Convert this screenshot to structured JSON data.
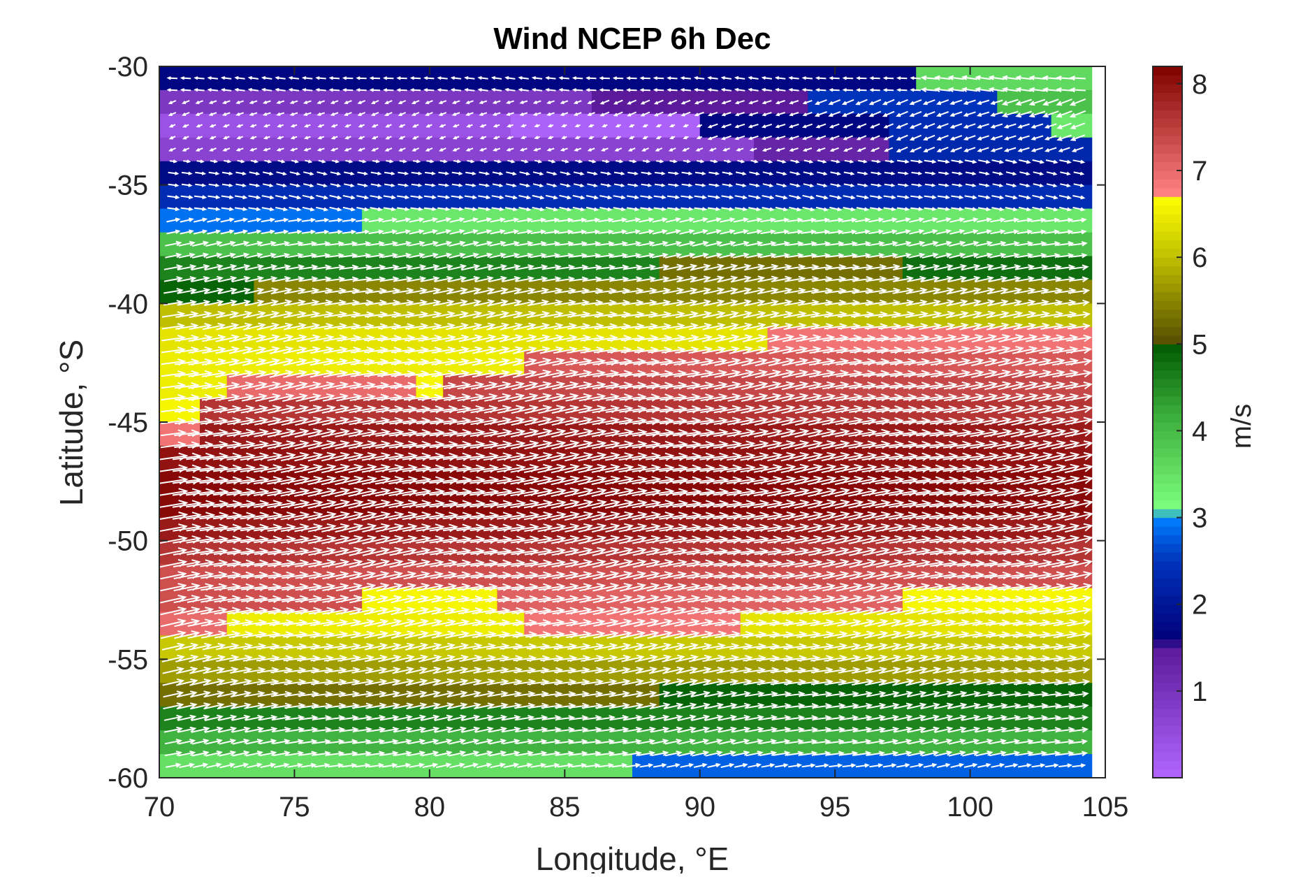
{
  "chart_data": {
    "type": "heatmap",
    "title": "Wind NCEP 6h Dec",
    "xlabel": "Longitude, °E",
    "ylabel": "Latitude, °S",
    "xlim": [
      70,
      105
    ],
    "ylim": [
      -60,
      -30
    ],
    "x_ticks": [
      "70",
      "75",
      "80",
      "85",
      "90",
      "95",
      "100",
      "105"
    ],
    "y_ticks": [
      "-30",
      "-35",
      "-40",
      "-45",
      "-50",
      "-55",
      "-60"
    ],
    "colorbar": {
      "label": "m/s",
      "range": [
        0,
        8.2
      ],
      "ticks": [
        "1",
        "2",
        "3",
        "4",
        "5",
        "6",
        "7",
        "8"
      ],
      "stops": [
        {
          "value": 0,
          "color": "#b266ff"
        },
        {
          "value": 1.5,
          "color": "#5a1a9a"
        },
        {
          "value": 1.6,
          "color": "#00007a"
        },
        {
          "value": 2.5,
          "color": "#0033bb"
        },
        {
          "value": 3.0,
          "color": "#0080ff"
        },
        {
          "value": 3.1,
          "color": "#7dff7d"
        },
        {
          "value": 4.2,
          "color": "#3aab3a"
        },
        {
          "value": 5.0,
          "color": "#005a00"
        },
        {
          "value": 5.05,
          "color": "#5a5200"
        },
        {
          "value": 6.0,
          "color": "#bfbf00"
        },
        {
          "value": 6.7,
          "color": "#ffff00"
        },
        {
          "value": 6.75,
          "color": "#ff8080"
        },
        {
          "value": 8.2,
          "color": "#800000"
        }
      ]
    },
    "grid_resolution_deg": 1.0,
    "rows": [
      {
        "lat": -30.5,
        "segments": [
          {
            "from": 70,
            "to": 98,
            "speed": 1.7
          },
          {
            "from": 98,
            "to": 104.5,
            "speed": 3.6
          }
        ]
      },
      {
        "lat": -31.5,
        "segments": [
          {
            "from": 70,
            "to": 86,
            "speed": 0.9
          },
          {
            "from": 86,
            "to": 94,
            "speed": 1.5
          },
          {
            "from": 94,
            "to": 101,
            "speed": 2.5
          },
          {
            "from": 101,
            "to": 104.5,
            "speed": 3.9
          }
        ]
      },
      {
        "lat": -32.5,
        "segments": [
          {
            "from": 70,
            "to": 83,
            "speed": 0.4
          },
          {
            "from": 83,
            "to": 90,
            "speed": 0.1
          },
          {
            "from": 90,
            "to": 97,
            "speed": 1.7
          },
          {
            "from": 97,
            "to": 103,
            "speed": 2.4
          },
          {
            "from": 103,
            "to": 104.5,
            "speed": 3.4
          }
        ]
      },
      {
        "lat": -33.5,
        "segments": [
          {
            "from": 70,
            "to": 92,
            "speed": 0.7
          },
          {
            "from": 92,
            "to": 97,
            "speed": 1.3
          },
          {
            "from": 97,
            "to": 104.5,
            "speed": 2.3
          }
        ]
      },
      {
        "lat": -34.5,
        "segments": [
          {
            "from": 70,
            "to": 104.5,
            "speed": 1.8
          }
        ]
      },
      {
        "lat": -35.5,
        "segments": [
          {
            "from": 70,
            "to": 104.5,
            "speed": 2.4
          }
        ]
      },
      {
        "lat": -36.5,
        "segments": [
          {
            "from": 70,
            "to": 77.5,
            "speed": 2.9
          },
          {
            "from": 77.5,
            "to": 104.5,
            "speed": 3.4
          }
        ]
      },
      {
        "lat": -37.5,
        "segments": [
          {
            "from": 70,
            "to": 104.5,
            "speed": 3.9
          }
        ]
      },
      {
        "lat": -38.5,
        "segments": [
          {
            "from": 70,
            "to": 88.5,
            "speed": 4.6
          },
          {
            "from": 88.5,
            "to": 97.5,
            "speed": 5.3
          },
          {
            "from": 97.5,
            "to": 104.5,
            "speed": 4.8
          }
        ]
      },
      {
        "lat": -39.5,
        "segments": [
          {
            "from": 70,
            "to": 73.5,
            "speed": 4.9
          },
          {
            "from": 73.5,
            "to": 104.5,
            "speed": 5.5
          }
        ]
      },
      {
        "lat": -40.5,
        "segments": [
          {
            "from": 70,
            "to": 104.5,
            "speed": 6.0
          }
        ]
      },
      {
        "lat": -41.5,
        "segments": [
          {
            "from": 70,
            "to": 92.5,
            "speed": 6.4
          },
          {
            "from": 92.5,
            "to": 104.5,
            "speed": 6.9
          }
        ]
      },
      {
        "lat": -42.5,
        "segments": [
          {
            "from": 70,
            "to": 83.5,
            "speed": 6.5
          },
          {
            "from": 83.5,
            "to": 104.5,
            "speed": 7.2
          }
        ]
      },
      {
        "lat": -43.5,
        "segments": [
          {
            "from": 70,
            "to": 72.5,
            "speed": 6.5
          },
          {
            "from": 72.5,
            "to": 79.5,
            "speed": 7.0
          },
          {
            "from": 79.5,
            "to": 80.5,
            "speed": 6.6
          },
          {
            "from": 80.5,
            "to": 104.5,
            "speed": 7.4
          }
        ]
      },
      {
        "lat": -44.5,
        "segments": [
          {
            "from": 70,
            "to": 71.5,
            "speed": 6.6
          },
          {
            "from": 71.5,
            "to": 104.5,
            "speed": 7.6
          }
        ]
      },
      {
        "lat": -45.5,
        "segments": [
          {
            "from": 70,
            "to": 71.5,
            "speed": 6.9
          },
          {
            "from": 71.5,
            "to": 104.5,
            "speed": 7.9
          }
        ]
      },
      {
        "lat": -46.5,
        "segments": [
          {
            "from": 70,
            "to": 104.5,
            "speed": 8.0
          }
        ]
      },
      {
        "lat": -47.5,
        "segments": [
          {
            "from": 70,
            "to": 104.5,
            "speed": 8.1
          }
        ]
      },
      {
        "lat": -48.5,
        "segments": [
          {
            "from": 70,
            "to": 104.5,
            "speed": 8.1
          }
        ]
      },
      {
        "lat": -49.5,
        "segments": [
          {
            "from": 70,
            "to": 104.5,
            "speed": 7.9
          }
        ]
      },
      {
        "lat": -50.5,
        "segments": [
          {
            "from": 70,
            "to": 104.5,
            "speed": 7.6
          }
        ]
      },
      {
        "lat": -51.5,
        "segments": [
          {
            "from": 70,
            "to": 104.5,
            "speed": 7.3
          }
        ]
      },
      {
        "lat": -52.5,
        "segments": [
          {
            "from": 70,
            "to": 77.5,
            "speed": 7.3
          },
          {
            "from": 77.5,
            "to": 82.5,
            "speed": 6.6
          },
          {
            "from": 82.5,
            "to": 97.5,
            "speed": 7.1
          },
          {
            "from": 97.5,
            "to": 104.5,
            "speed": 6.6
          }
        ]
      },
      {
        "lat": -53.5,
        "segments": [
          {
            "from": 70,
            "to": 72.5,
            "speed": 7.0
          },
          {
            "from": 72.5,
            "to": 83.5,
            "speed": 6.5
          },
          {
            "from": 83.5,
            "to": 91.5,
            "speed": 6.9
          },
          {
            "from": 91.5,
            "to": 104.5,
            "speed": 6.4
          }
        ]
      },
      {
        "lat": -54.5,
        "segments": [
          {
            "from": 70,
            "to": 104.5,
            "speed": 6.1
          }
        ]
      },
      {
        "lat": -55.5,
        "segments": [
          {
            "from": 70,
            "to": 104.5,
            "speed": 5.7
          }
        ]
      },
      {
        "lat": -56.5,
        "segments": [
          {
            "from": 70,
            "to": 88.5,
            "speed": 5.3
          },
          {
            "from": 88.5,
            "to": 104.5,
            "speed": 4.9
          }
        ]
      },
      {
        "lat": -57.5,
        "segments": [
          {
            "from": 70,
            "to": 104.5,
            "speed": 4.6
          }
        ]
      },
      {
        "lat": -58.5,
        "segments": [
          {
            "from": 70,
            "to": 104.5,
            "speed": 4.1
          }
        ]
      },
      {
        "lat": -59.5,
        "segments": [
          {
            "from": 70,
            "to": 87.5,
            "speed": 3.5
          },
          {
            "from": 87.5,
            "to": 104.5,
            "speed": 2.8
          }
        ]
      }
    ],
    "vector_field": {
      "color": "#ffffff",
      "description_dirs": [
        {
          "lat_max": -30,
          "lat_min": -31.5,
          "dir_deg": 175
        },
        {
          "lat_max": -31.5,
          "lat_min": -34,
          "dir_deg": 200
        },
        {
          "lat_max": -34,
          "lat_min": -36.5,
          "dir_deg": 350
        },
        {
          "lat_max": -36.5,
          "lat_min": -60,
          "dir_deg": 10
        }
      ]
    },
    "legend": "none",
    "grid": false
  }
}
